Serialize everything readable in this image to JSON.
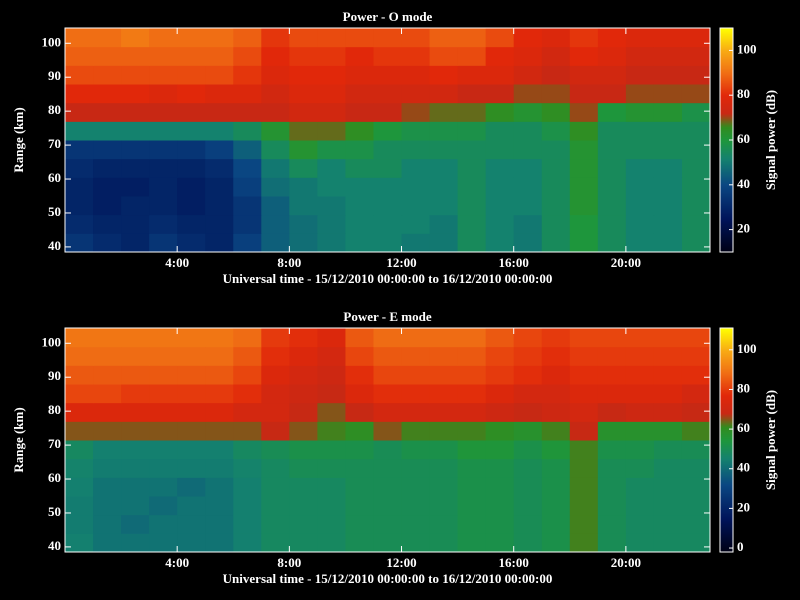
{
  "chart_data": [
    {
      "type": "heatmap",
      "title": "Power - O mode",
      "xlabel": "Universal time - 15/12/2010 00:00:00 to 16/12/2010 00:00:00",
      "ylabel": "Range (km)",
      "x_bins": [
        0,
        1,
        2,
        3,
        4,
        5,
        6,
        7,
        8,
        9,
        10,
        11,
        12,
        13,
        14,
        15,
        16,
        17,
        18,
        19,
        20,
        21,
        22,
        23
      ],
      "y_bins": [
        38.5,
        44,
        49.5,
        55,
        60.5,
        66,
        71.5,
        77,
        82.5,
        88,
        93.5,
        99,
        104.5
      ],
      "xlim": [
        0,
        23
      ],
      "ylim": [
        38.5,
        104.5
      ],
      "xticks": [
        {
          "value": 4,
          "label": "4:00"
        },
        {
          "value": 8,
          "label": "8:00"
        },
        {
          "value": 12,
          "label": "12:00"
        },
        {
          "value": 16,
          "label": "16:00"
        },
        {
          "value": 20,
          "label": "20:00"
        }
      ],
      "yticks": [
        40,
        50,
        60,
        70,
        80,
        90,
        100
      ],
      "values": [
        [
          35,
          32,
          30,
          35,
          32,
          30,
          38,
          45,
          48,
          50,
          52,
          52,
          50,
          50,
          55,
          52,
          50,
          55,
          60,
          55,
          52,
          52,
          55
        ],
        [
          32,
          30,
          30,
          32,
          30,
          30,
          35,
          45,
          48,
          50,
          52,
          52,
          52,
          50,
          55,
          52,
          50,
          55,
          60,
          55,
          52,
          52,
          55
        ],
        [
          30,
          28,
          30,
          30,
          28,
          30,
          35,
          45,
          50,
          50,
          52,
          52,
          52,
          52,
          55,
          52,
          52,
          55,
          62,
          55,
          52,
          52,
          55
        ],
        [
          30,
          28,
          28,
          30,
          28,
          30,
          38,
          48,
          50,
          52,
          52,
          52,
          52,
          52,
          55,
          52,
          52,
          55,
          62,
          55,
          52,
          52,
          55
        ],
        [
          32,
          30,
          30,
          30,
          30,
          32,
          40,
          50,
          55,
          52,
          55,
          55,
          52,
          52,
          55,
          52,
          52,
          55,
          62,
          55,
          52,
          52,
          55
        ],
        [
          35,
          35,
          35,
          35,
          35,
          38,
          45,
          55,
          62,
          58,
          58,
          55,
          55,
          55,
          55,
          55,
          55,
          55,
          62,
          55,
          55,
          55,
          55
        ],
        [
          52,
          52,
          52,
          52,
          52,
          52,
          55,
          62,
          68,
          68,
          65,
          60,
          58,
          58,
          58,
          55,
          55,
          58,
          65,
          55,
          55,
          55,
          55
        ],
        [
          72,
          72,
          72,
          72,
          72,
          72,
          72,
          72,
          75,
          75,
          72,
          72,
          70,
          68,
          68,
          65,
          62,
          65,
          70,
          60,
          62,
          62,
          58
        ],
        [
          80,
          80,
          80,
          78,
          80,
          78,
          78,
          75,
          78,
          78,
          75,
          75,
          75,
          75,
          72,
          72,
          70,
          70,
          72,
          72,
          70,
          70,
          70
        ],
        [
          85,
          85,
          85,
          85,
          85,
          85,
          82,
          78,
          80,
          80,
          78,
          78,
          78,
          80,
          78,
          78,
          75,
          72,
          75,
          75,
          72,
          72,
          72
        ],
        [
          88,
          88,
          88,
          88,
          88,
          88,
          85,
          80,
          82,
          82,
          80,
          82,
          82,
          85,
          85,
          80,
          78,
          75,
          80,
          78,
          75,
          75,
          75
        ],
        [
          90,
          90,
          92,
          90,
          90,
          90,
          88,
          82,
          85,
          85,
          85,
          85,
          85,
          88,
          88,
          85,
          80,
          78,
          82,
          80,
          78,
          78,
          78
        ]
      ],
      "colorbar": {
        "label": "Signal power (dB)",
        "zlim": [
          10,
          110
        ],
        "zticks": [
          20,
          40,
          60,
          80,
          100
        ]
      }
    },
    {
      "type": "heatmap",
      "title": "Power - E mode",
      "xlabel": "Universal time - 15/12/2010 00:00:00 to 16/12/2010 00:00:00",
      "ylabel": "Range (km)",
      "x_bins": [
        0,
        1,
        2,
        3,
        4,
        5,
        6,
        7,
        8,
        9,
        10,
        11,
        12,
        13,
        14,
        15,
        16,
        17,
        18,
        19,
        20,
        21,
        22,
        23
      ],
      "y_bins": [
        38.5,
        44,
        49.5,
        55,
        60.5,
        66,
        71.5,
        77,
        82.5,
        88,
        93.5,
        99,
        104.5
      ],
      "xlim": [
        0,
        23
      ],
      "ylim": [
        38.5,
        104.5
      ],
      "xticks": [
        {
          "value": 4,
          "label": "4:00"
        },
        {
          "value": 8,
          "label": "8:00"
        },
        {
          "value": 12,
          "label": "12:00"
        },
        {
          "value": 16,
          "label": "16:00"
        },
        {
          "value": 20,
          "label": "20:00"
        }
      ],
      "yticks": [
        40,
        50,
        60,
        70,
        80,
        90,
        100
      ],
      "values": [
        [
          45,
          42,
          42,
          42,
          42,
          42,
          45,
          48,
          48,
          48,
          50,
          50,
          50,
          50,
          52,
          52,
          50,
          52,
          62,
          50,
          48,
          48,
          48
        ],
        [
          44,
          42,
          40,
          42,
          42,
          42,
          45,
          48,
          48,
          48,
          50,
          50,
          50,
          50,
          52,
          52,
          50,
          52,
          62,
          50,
          48,
          48,
          48
        ],
        [
          44,
          42,
          42,
          40,
          42,
          42,
          45,
          48,
          48,
          48,
          50,
          50,
          50,
          50,
          52,
          52,
          50,
          52,
          62,
          50,
          48,
          48,
          48
        ],
        [
          45,
          42,
          42,
          42,
          40,
          42,
          45,
          48,
          48,
          48,
          50,
          50,
          50,
          50,
          52,
          52,
          50,
          52,
          62,
          50,
          48,
          48,
          48
        ],
        [
          46,
          44,
          44,
          44,
          44,
          44,
          46,
          48,
          50,
          50,
          50,
          50,
          50,
          50,
          52,
          52,
          50,
          52,
          62,
          50,
          50,
          48,
          48
        ],
        [
          48,
          45,
          45,
          45,
          45,
          45,
          48,
          50,
          52,
          52,
          52,
          50,
          52,
          52,
          55,
          55,
          52,
          55,
          62,
          52,
          52,
          50,
          50
        ],
        [
          65,
          65,
          65,
          65,
          65,
          65,
          65,
          68,
          65,
          62,
          60,
          65,
          62,
          62,
          62,
          60,
          58,
          62,
          68,
          58,
          58,
          58,
          62
        ],
        [
          75,
          75,
          75,
          75,
          75,
          75,
          72,
          72,
          68,
          65,
          68,
          72,
          72,
          72,
          72,
          70,
          68,
          70,
          72,
          68,
          70,
          70,
          68
        ],
        [
          82,
          82,
          80,
          80,
          80,
          80,
          78,
          72,
          70,
          68,
          75,
          78,
          78,
          78,
          78,
          75,
          72,
          72,
          75,
          75,
          75,
          75,
          72
        ],
        [
          85,
          85,
          85,
          85,
          85,
          85,
          82,
          75,
          72,
          70,
          78,
          82,
          82,
          82,
          82,
          80,
          78,
          75,
          78,
          78,
          78,
          78,
          78
        ],
        [
          88,
          88,
          88,
          88,
          88,
          88,
          85,
          78,
          75,
          72,
          82,
          85,
          85,
          85,
          85,
          82,
          80,
          78,
          80,
          80,
          80,
          80,
          80
        ],
        [
          90,
          90,
          90,
          90,
          90,
          90,
          88,
          80,
          78,
          75,
          85,
          88,
          88,
          88,
          88,
          85,
          82,
          80,
          82,
          82,
          82,
          82,
          82
        ]
      ],
      "colorbar": {
        "label": "Signal power (dB)",
        "zlim": [
          -2,
          111
        ],
        "zticks": [
          0,
          20,
          40,
          60,
          80,
          100
        ]
      }
    }
  ]
}
